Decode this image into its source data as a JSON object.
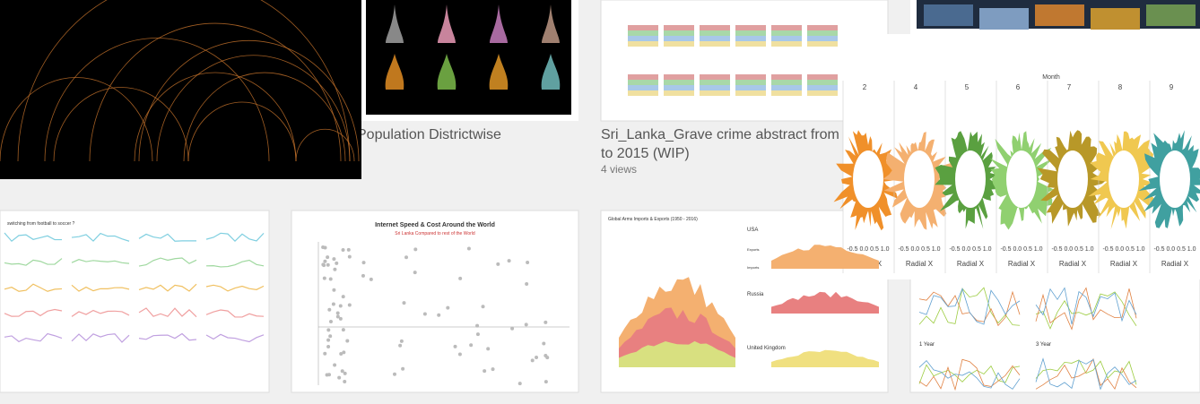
{
  "gallery": {
    "population_card": {
      "title": "Population Districtwise"
    },
    "crime_card": {
      "title_lines": [
        "Sri_Lanka_Grave crime abstract from",
        "to 2015 (WIP)"
      ],
      "views": "4 views"
    },
    "football_thumb": {
      "title": "switching from football to soccer ?"
    },
    "internet_thumb": {
      "title": "Internet Speed & Cost Around the World",
      "subtitle": "Sri Lanka Compared to rest of the World"
    },
    "arms_thumb": {
      "title": "Global Arms Imports & Exports (1950 - 2016)",
      "countries": [
        "USA",
        "Russia",
        "United Kingdom"
      ],
      "row_labels": [
        "Exports",
        "Imports"
      ]
    },
    "returns_thumb": {
      "labels": [
        "1 Year",
        "3 Year"
      ]
    },
    "radial_overlay": {
      "title": "Month",
      "columns": [
        "2",
        "4",
        "5",
        "6",
        "7",
        "8",
        "9"
      ],
      "axis_ticks": "-0.5 0.0 0.5 1.0",
      "axis_label": "Radial X"
    }
  }
}
